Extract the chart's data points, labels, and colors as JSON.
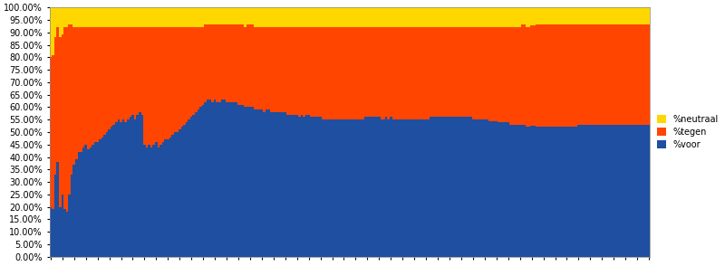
{
  "legend_labels": [
    "%neutraal",
    "%tegen",
    "%voor"
  ],
  "colors": [
    "#FFD700",
    "#FF4500",
    "#1E4FA0"
  ],
  "background_color": "#FFFFFF",
  "ylim": [
    0,
    1.0
  ],
  "ytick_labels": [
    "0.00%",
    "5.00%",
    "10.00%",
    "15.00%",
    "20.00%",
    "25.00%",
    "30.00%",
    "35.00%",
    "40.00%",
    "45.00%",
    "50.00%",
    "55.00%",
    "60.00%",
    "65.00%",
    "70.00%",
    "75.00%",
    "80.00%",
    "85.00%",
    "90.00%",
    "95.00%",
    "100.00%"
  ],
  "ytick_values": [
    0.0,
    0.05,
    0.1,
    0.15,
    0.2,
    0.25,
    0.3,
    0.35,
    0.4,
    0.45,
    0.5,
    0.55,
    0.6,
    0.65,
    0.7,
    0.75,
    0.8,
    0.85,
    0.9,
    0.95,
    1.0
  ],
  "voor_raw": [
    0.2,
    0.19,
    0.33,
    0.38,
    0.2,
    0.25,
    0.19,
    0.18,
    0.25,
    0.33,
    0.37,
    0.39,
    0.42,
    0.42,
    0.44,
    0.45,
    0.43,
    0.44,
    0.45,
    0.46,
    0.46,
    0.47,
    0.48,
    0.49,
    0.5,
    0.51,
    0.52,
    0.53,
    0.54,
    0.55,
    0.54,
    0.55,
    0.54,
    0.55,
    0.56,
    0.57,
    0.55,
    0.57,
    0.58,
    0.57,
    0.45,
    0.44,
    0.45,
    0.44,
    0.45,
    0.46,
    0.44,
    0.45,
    0.46,
    0.47,
    0.47,
    0.48,
    0.49,
    0.5,
    0.5,
    0.51,
    0.52,
    0.53,
    0.54,
    0.55,
    0.56,
    0.57,
    0.58,
    0.59,
    0.6,
    0.61,
    0.62,
    0.63,
    0.63,
    0.62,
    0.63,
    0.62,
    0.62,
    0.63,
    0.63,
    0.62,
    0.62,
    0.62,
    0.62,
    0.62,
    0.61,
    0.61,
    0.61,
    0.6,
    0.6,
    0.6,
    0.6,
    0.59,
    0.59,
    0.59,
    0.59,
    0.58,
    0.59,
    0.59,
    0.58,
    0.58,
    0.58,
    0.58,
    0.58,
    0.58,
    0.58,
    0.57,
    0.57,
    0.57,
    0.57,
    0.57,
    0.56,
    0.57,
    0.56,
    0.57,
    0.57,
    0.56,
    0.56,
    0.56,
    0.56,
    0.56,
    0.55,
    0.55,
    0.55,
    0.55,
    0.55,
    0.55,
    0.55,
    0.55,
    0.55,
    0.55,
    0.55,
    0.55,
    0.55,
    0.55,
    0.55,
    0.55,
    0.55,
    0.55,
    0.56,
    0.56,
    0.56,
    0.56,
    0.56,
    0.56,
    0.56,
    0.55,
    0.55,
    0.56,
    0.55,
    0.56,
    0.55,
    0.55,
    0.55,
    0.55,
    0.55,
    0.55,
    0.55,
    0.55,
    0.55,
    0.55,
    0.55,
    0.55,
    0.55,
    0.55,
    0.55,
    0.55,
    0.56,
    0.56,
    0.56,
    0.56,
    0.56,
    0.56,
    0.56,
    0.56,
    0.56,
    0.56,
    0.56,
    0.56,
    0.56,
    0.56,
    0.56,
    0.56,
    0.56,
    0.56,
    0.55,
    0.55,
    0.55,
    0.55,
    0.55,
    0.55,
    0.55,
    0.55,
    0.55,
    0.55,
    0.55,
    0.54,
    0.54,
    0.54,
    0.54,
    0.54,
    0.53,
    0.53,
    0.53,
    0.53,
    0.53,
    0.53,
    0.53,
    0.52,
    0.52,
    0.52,
    0.52,
    0.52,
    0.52,
    0.52,
    0.52,
    0.52,
    0.52,
    0.52,
    0.52,
    0.52,
    0.52,
    0.52,
    0.52,
    0.52,
    0.52,
    0.52,
    0.52,
    0.52,
    0.52,
    0.53,
    0.53,
    0.53,
    0.53,
    0.53,
    0.53,
    0.53,
    0.53,
    0.53,
    0.53,
    0.53,
    0.53,
    0.53,
    0.53,
    0.53,
    0.53,
    0.53,
    0.53,
    0.53,
    0.53,
    0.53,
    0.53,
    0.53,
    0.53,
    0.53,
    0.53,
    0.53,
    0.53,
    0.53,
    0.53,
    0.53
  ],
  "tegen_raw": [
    0.6,
    0.62,
    0.55,
    0.54,
    0.68,
    0.64,
    0.73,
    0.74,
    0.68,
    0.6,
    0.55,
    0.53,
    0.5,
    0.5,
    0.48,
    0.47,
    0.49,
    0.48,
    0.47,
    0.46,
    0.46,
    0.45,
    0.44,
    0.43,
    0.42,
    0.41,
    0.4,
    0.39,
    0.38,
    0.37,
    0.38,
    0.37,
    0.38,
    0.37,
    0.36,
    0.35,
    0.37,
    0.35,
    0.34,
    0.35,
    0.47,
    0.48,
    0.47,
    0.48,
    0.47,
    0.46,
    0.48,
    0.47,
    0.46,
    0.45,
    0.45,
    0.44,
    0.43,
    0.42,
    0.42,
    0.41,
    0.4,
    0.39,
    0.38,
    0.37,
    0.36,
    0.35,
    0.34,
    0.33,
    0.32,
    0.31,
    0.31,
    0.3,
    0.3,
    0.31,
    0.3,
    0.31,
    0.31,
    0.3,
    0.3,
    0.31,
    0.31,
    0.31,
    0.31,
    0.31,
    0.32,
    0.32,
    0.32,
    0.32,
    0.33,
    0.33,
    0.33,
    0.33,
    0.33,
    0.33,
    0.33,
    0.34,
    0.33,
    0.33,
    0.34,
    0.34,
    0.34,
    0.34,
    0.34,
    0.34,
    0.34,
    0.35,
    0.35,
    0.35,
    0.35,
    0.35,
    0.36,
    0.35,
    0.36,
    0.35,
    0.35,
    0.36,
    0.36,
    0.36,
    0.36,
    0.36,
    0.37,
    0.37,
    0.37,
    0.37,
    0.37,
    0.37,
    0.37,
    0.37,
    0.37,
    0.37,
    0.37,
    0.37,
    0.37,
    0.37,
    0.37,
    0.37,
    0.37,
    0.37,
    0.36,
    0.36,
    0.36,
    0.36,
    0.36,
    0.36,
    0.36,
    0.37,
    0.37,
    0.36,
    0.37,
    0.36,
    0.37,
    0.37,
    0.37,
    0.37,
    0.37,
    0.37,
    0.37,
    0.37,
    0.37,
    0.37,
    0.37,
    0.37,
    0.37,
    0.37,
    0.37,
    0.37,
    0.36,
    0.36,
    0.36,
    0.36,
    0.36,
    0.36,
    0.36,
    0.36,
    0.36,
    0.36,
    0.36,
    0.36,
    0.36,
    0.36,
    0.36,
    0.36,
    0.36,
    0.36,
    0.37,
    0.37,
    0.37,
    0.37,
    0.37,
    0.37,
    0.37,
    0.38,
    0.38,
    0.38,
    0.38,
    0.38,
    0.38,
    0.38,
    0.38,
    0.38,
    0.39,
    0.39,
    0.39,
    0.39,
    0.39,
    0.4,
    0.4,
    0.4,
    0.4,
    0.4,
    0.4,
    0.41,
    0.41,
    0.41,
    0.41,
    0.41,
    0.41,
    0.41,
    0.41,
    0.41,
    0.41,
    0.41,
    0.41,
    0.41,
    0.41,
    0.41,
    0.41,
    0.41,
    0.41,
    0.4,
    0.4,
    0.4,
    0.4,
    0.4,
    0.4,
    0.4,
    0.4,
    0.4,
    0.4,
    0.4,
    0.4,
    0.4,
    0.4,
    0.4,
    0.4,
    0.4,
    0.4,
    0.4,
    0.4,
    0.4,
    0.4,
    0.4,
    0.4,
    0.4,
    0.4,
    0.4,
    0.4,
    0.4,
    0.4,
    0.4
  ],
  "neutraal_raw": [
    0.2,
    0.19,
    0.12,
    0.08,
    0.12,
    0.11,
    0.08,
    0.08,
    0.07,
    0.07,
    0.08,
    0.08,
    0.08,
    0.08,
    0.08,
    0.08,
    0.08,
    0.08,
    0.08,
    0.08,
    0.08,
    0.08,
    0.08,
    0.08,
    0.08,
    0.08,
    0.08,
    0.08,
    0.08,
    0.08,
    0.08,
    0.08,
    0.08,
    0.08,
    0.08,
    0.08,
    0.08,
    0.08,
    0.08,
    0.08,
    0.08,
    0.08,
    0.08,
    0.08,
    0.08,
    0.08,
    0.08,
    0.08,
    0.08,
    0.08,
    0.08,
    0.08,
    0.08,
    0.08,
    0.08,
    0.08,
    0.08,
    0.08,
    0.08,
    0.08,
    0.08,
    0.08,
    0.08,
    0.08,
    0.08,
    0.08,
    0.07,
    0.07,
    0.07,
    0.07,
    0.07,
    0.07,
    0.07,
    0.07,
    0.07,
    0.07,
    0.07,
    0.07,
    0.07,
    0.07,
    0.07,
    0.07,
    0.07,
    0.08,
    0.07,
    0.07,
    0.07,
    0.08,
    0.08,
    0.08,
    0.08,
    0.08,
    0.08,
    0.08,
    0.08,
    0.08,
    0.08,
    0.08,
    0.08,
    0.08,
    0.08,
    0.08,
    0.08,
    0.08,
    0.08,
    0.08,
    0.08,
    0.08,
    0.08,
    0.08,
    0.08,
    0.08,
    0.08,
    0.08,
    0.08,
    0.08,
    0.08,
    0.08,
    0.08,
    0.08,
    0.08,
    0.08,
    0.08,
    0.08,
    0.08,
    0.08,
    0.08,
    0.08,
    0.08,
    0.08,
    0.08,
    0.08,
    0.08,
    0.08,
    0.08,
    0.08,
    0.08,
    0.08,
    0.08,
    0.08,
    0.08,
    0.08,
    0.08,
    0.08,
    0.08,
    0.08,
    0.08,
    0.08,
    0.08,
    0.08,
    0.08,
    0.08,
    0.08,
    0.08,
    0.08,
    0.08,
    0.08,
    0.08,
    0.08,
    0.08,
    0.08,
    0.08,
    0.08,
    0.08,
    0.08,
    0.08,
    0.08,
    0.08,
    0.08,
    0.08,
    0.08,
    0.08,
    0.08,
    0.08,
    0.08,
    0.08,
    0.08,
    0.08,
    0.08,
    0.08,
    0.08,
    0.08,
    0.08,
    0.08,
    0.08,
    0.08,
    0.08,
    0.08,
    0.08,
    0.08,
    0.08,
    0.08,
    0.08,
    0.08,
    0.08,
    0.08,
    0.08,
    0.08,
    0.08,
    0.08,
    0.08,
    0.07,
    0.07,
    0.08,
    0.08,
    0.07,
    0.07,
    0.07,
    0.07,
    0.07,
    0.07,
    0.07,
    0.07,
    0.07,
    0.07,
    0.07,
    0.07,
    0.07,
    0.07,
    0.07,
    0.07,
    0.07,
    0.07,
    0.07,
    0.07,
    0.07,
    0.07,
    0.07,
    0.07,
    0.07,
    0.07,
    0.07,
    0.07,
    0.07,
    0.07,
    0.07,
    0.07,
    0.07,
    0.07,
    0.07,
    0.07,
    0.07,
    0.07,
    0.07,
    0.07,
    0.07,
    0.07,
    0.07,
    0.07,
    0.07,
    0.07,
    0.07,
    0.07,
    0.07,
    0.07,
    0.07
  ]
}
